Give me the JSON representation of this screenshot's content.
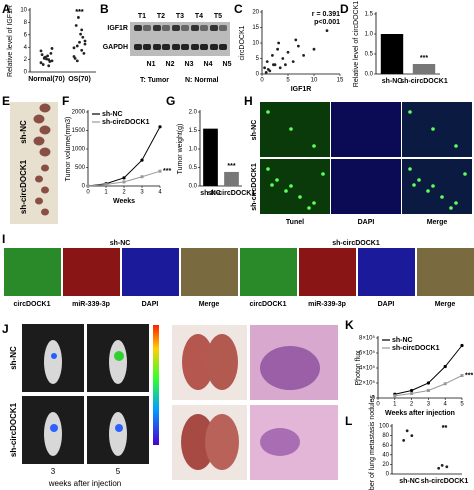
{
  "panel_letters": [
    "A",
    "B",
    "C",
    "D",
    "E",
    "F",
    "G",
    "H",
    "I",
    "J",
    "K",
    "L"
  ],
  "chart_data": [
    {
      "type": "strip",
      "ylabel": "Relative level of IGF1R",
      "categories": [
        "Normal(70)",
        "OS(70)"
      ],
      "points": [
        [
          1.5,
          2.0,
          2.3,
          1.8,
          2.6,
          1.2,
          3.0,
          2.1,
          2.8,
          1.7,
          2.4,
          3.4,
          1.0,
          2.2,
          3.8
        ],
        [
          2.5,
          3.5,
          4.2,
          5.0,
          6.1,
          7.5,
          3.0,
          4.8,
          2.2,
          5.6,
          8.8,
          3.9,
          6.8,
          1.8,
          4.5
        ]
      ],
      "color": "#222222",
      "ylim": [
        0,
        10
      ],
      "yticks": [
        0,
        2,
        4,
        6,
        8,
        10
      ],
      "annotations": [
        "***"
      ]
    },
    {
      "type": "scatter",
      "ylabel": "circDOCK1",
      "xlabel": "IGF1R",
      "x": [
        0.5,
        1,
        1.5,
        2,
        2.5,
        3,
        3.5,
        4,
        5,
        6,
        7,
        8,
        1.2,
        2.2,
        0.8,
        3.2,
        10,
        12.5,
        4.5,
        6.5
      ],
      "y": [
        2,
        4,
        1,
        6,
        3,
        8,
        2,
        5,
        7,
        4,
        9,
        6,
        1.5,
        3,
        0.5,
        10,
        8,
        14,
        3,
        11
      ],
      "color": "#222222",
      "xlim": [
        0,
        15
      ],
      "xticks": [
        0,
        5,
        10,
        15
      ],
      "ylim": [
        0,
        20
      ],
      "yticks": [
        0,
        5,
        10,
        15,
        20
      ],
      "annotations": [
        "r = 0.391",
        "p<0.001"
      ]
    },
    {
      "type": "bar",
      "ylabel": "Relative level of circDOCK1",
      "categories": [
        "sh-NC",
        "sh-circDOCK1"
      ],
      "values": [
        1.0,
        0.25
      ],
      "colors": [
        "#000000",
        "#777777"
      ],
      "ylim": [
        0,
        1.5
      ],
      "yticks": [
        {
          "value": 0,
          "label": "0.0"
        },
        0.5,
        {
          "value": 1,
          "label": "1.0"
        },
        1.5
      ],
      "annotations": [
        "***"
      ]
    },
    {
      "type": "line",
      "ylabel": "Tumor volume(mm3)",
      "xlabel": "Weeks",
      "x": [
        0,
        1,
        2,
        3,
        4
      ],
      "xlim": [
        0,
        4
      ],
      "xticks": [
        0,
        1,
        2,
        3,
        4
      ],
      "series": [
        {
          "name": "sh-NC",
          "color": "#000000",
          "values": [
            0,
            60,
            220,
            700,
            1600
          ]
        },
        {
          "name": "sh-circDOCK1",
          "color": "#999999",
          "values": [
            0,
            40,
            110,
            250,
            400
          ]
        }
      ],
      "ylim": [
        0,
        2000
      ],
      "yticks": [
        0,
        500,
        1000,
        1500,
        2000
      ],
      "annotations": [
        "***"
      ]
    },
    {
      "type": "bar",
      "ylabel": "Tumor weight(g)",
      "categories": [
        "sh-NC",
        "sh-circDOCK1"
      ],
      "values": [
        1.55,
        0.38
      ],
      "colors": [
        "#000000",
        "#777777"
      ],
      "ylim": [
        0,
        2
      ],
      "yticks": [
        {
          "value": 0,
          "label": "0.0"
        },
        0.5,
        {
          "value": 1,
          "label": "1.0"
        },
        1.5,
        {
          "value": 2,
          "label": "2.0"
        }
      ],
      "annotations": [
        "***"
      ]
    },
    {
      "type": "line",
      "ylabel": "Photon flux",
      "xlabel": "Weeks after injection",
      "x": [
        1,
        2,
        3,
        4,
        5
      ],
      "xlim": [
        0,
        5
      ],
      "xticks": [
        0,
        1,
        2,
        3,
        4,
        5
      ],
      "series": [
        {
          "name": "sh-NC",
          "color": "#000000",
          "values": [
            50000,
            100000,
            200000,
            420000,
            700000
          ]
        },
        {
          "name": "sh-circDOCK1",
          "color": "#999999",
          "values": [
            30000,
            60000,
            100000,
            190000,
            300000
          ]
        }
      ],
      "ylim": [
        0,
        800000
      ],
      "yticks": [
        0,
        {
          "value": 200000,
          "label": "2×10⁵"
        },
        {
          "value": 400000,
          "label": "4×10⁵"
        },
        {
          "value": 600000,
          "label": "6×10⁵"
        },
        {
          "value": 800000,
          "label": "8×10⁵"
        }
      ],
      "annotations": [
        "***"
      ]
    },
    {
      "type": "strip",
      "ylabel": "Number of lung metastasis nodules",
      "categories": [
        "sh-NC",
        "sh-circDOCK1"
      ],
      "points": [
        [
          70,
          80,
          90
        ],
        [
          12,
          15,
          18
        ]
      ],
      "color": "#222222",
      "ylim": [
        0,
        100
      ],
      "yticks": [
        0,
        20,
        40,
        60,
        80,
        100
      ],
      "annotations": [
        "**"
      ]
    }
  ],
  "blot": {
    "lanes_top": [
      "T1",
      "T2",
      "T3",
      "T4",
      "T5"
    ],
    "lanes_bottom": [
      "N1",
      "N2",
      "N3",
      "N4",
      "N5"
    ],
    "proteins": [
      "IGF1R",
      "GAPDH"
    ],
    "legend": [
      "T: Tumor",
      "N: Normal"
    ]
  },
  "tumor_photo": {
    "groups": [
      "sh-NC",
      "sh-circDOCK1"
    ]
  },
  "tunel": {
    "groups": [
      "sh-NC",
      "sh-circDOCK1"
    ],
    "channels": [
      "Tunel",
      "DAPI",
      "Merge"
    ]
  },
  "fish": {
    "groups": [
      "sh-NC",
      "sh-circDOCK1"
    ],
    "channels": [
      "circDOCK1",
      "miR-339-3p",
      "DAPI",
      "Merge"
    ]
  },
  "imaging": {
    "groups": [
      "sh-NC",
      "sh-circDOCK1"
    ],
    "timepoints": [
      "3",
      "5"
    ],
    "xlabel": "weeks after injection"
  }
}
